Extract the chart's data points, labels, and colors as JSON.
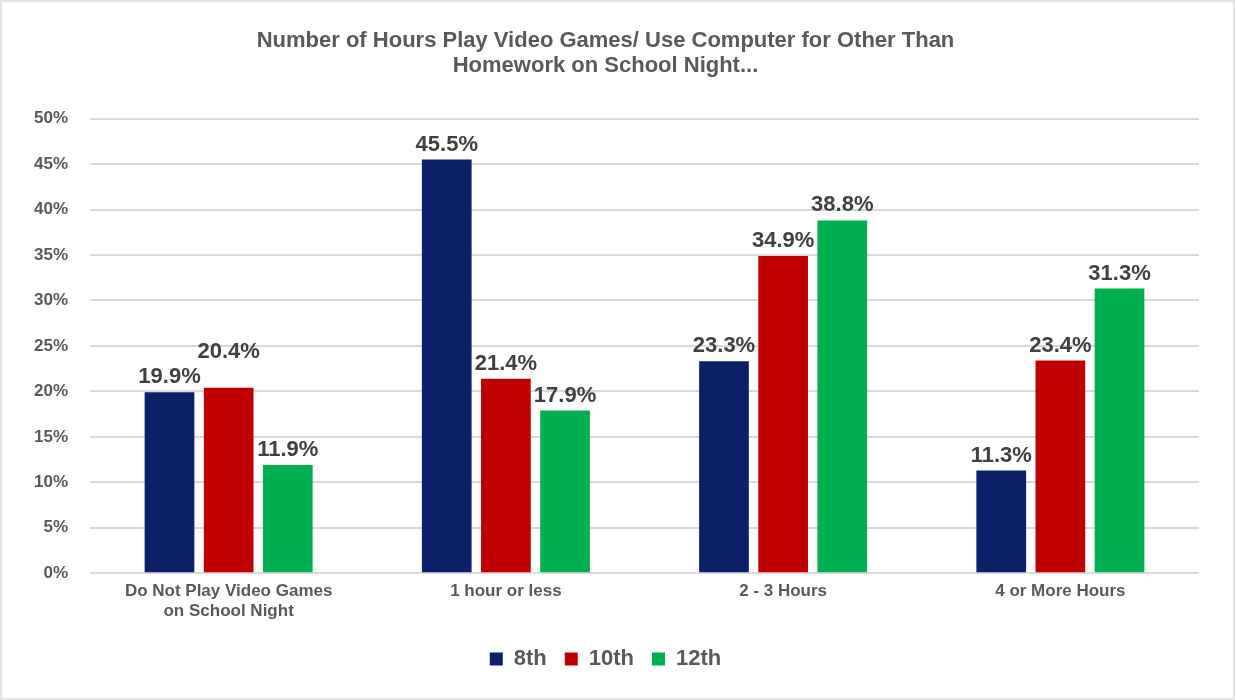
{
  "chart_data": {
    "type": "bar",
    "title": "Number of Hours Play Video Games/ Use Computer for Other Than Homework on School Night...",
    "categories": [
      "Do Not Play Video Games on School Night",
      "1 hour or less",
      "2 - 3 Hours",
      "4 or More Hours"
    ],
    "series": [
      {
        "name": "8th",
        "color": "#0b2068",
        "values": [
          19.9,
          45.5,
          23.3,
          11.3
        ],
        "value_labels": [
          "19.9%",
          "45.5%",
          "23.3%",
          "11.3%"
        ]
      },
      {
        "name": "10th",
        "color": "#c00000",
        "values": [
          20.4,
          21.4,
          34.9,
          23.4
        ],
        "value_labels": [
          "20.4%",
          "21.4%",
          "34.9%",
          "23.4%"
        ]
      },
      {
        "name": "12th",
        "color": "#00b050",
        "values": [
          11.9,
          17.9,
          38.8,
          31.3
        ],
        "value_labels": [
          "11.9%",
          "17.9%",
          "38.8%",
          "31.3%"
        ]
      }
    ],
    "ylim": [
      0,
      50
    ],
    "yticks": [
      {
        "value": 0,
        "label": "0%"
      },
      {
        "value": 5,
        "label": "5%"
      },
      {
        "value": 10,
        "label": "10%"
      },
      {
        "value": 15,
        "label": "15%"
      },
      {
        "value": 20,
        "label": "20%"
      },
      {
        "value": 25,
        "label": "25%"
      },
      {
        "value": 30,
        "label": "30%"
      },
      {
        "value": 35,
        "label": "35%"
      },
      {
        "value": 40,
        "label": "40%"
      },
      {
        "value": 45,
        "label": "45%"
      },
      {
        "value": 50,
        "label": "50%"
      }
    ],
    "grid": "y",
    "legend": "bottom"
  }
}
